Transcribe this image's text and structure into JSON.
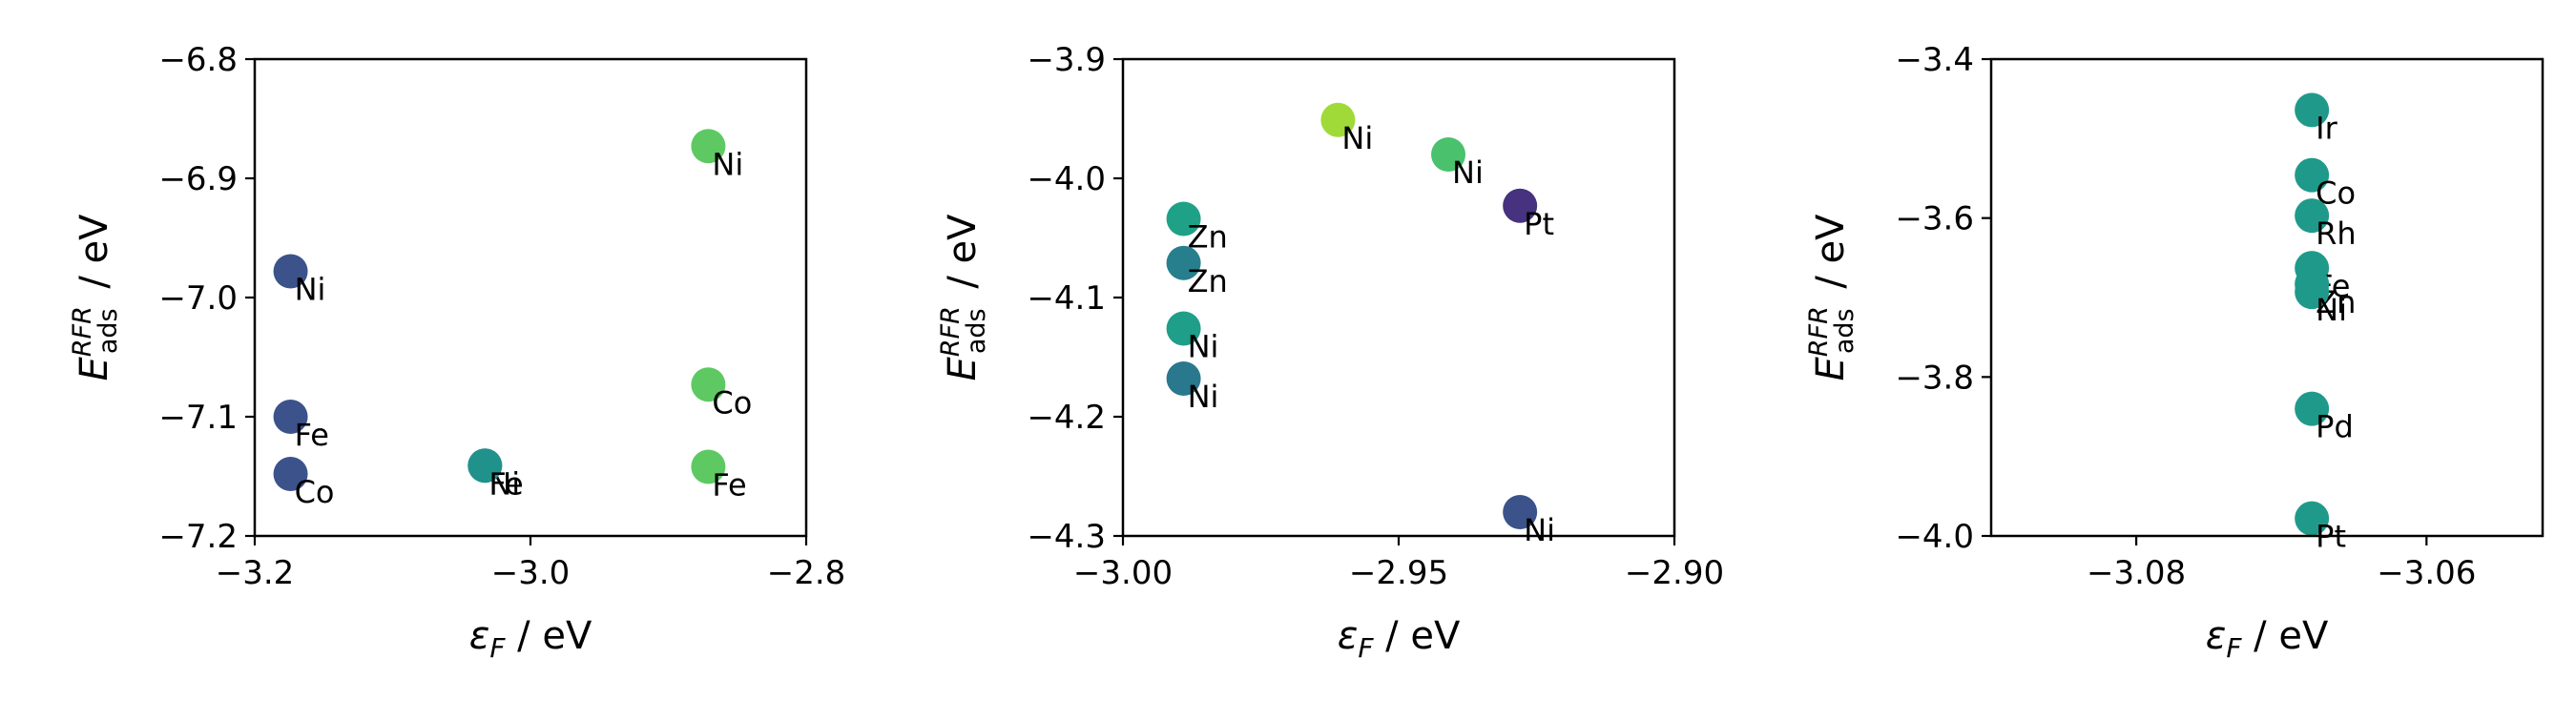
{
  "figure": {
    "xlabel": "ε_F / eV",
    "ylabel": "E_ads^RFR / eV"
  },
  "chart_data": [
    {
      "type": "scatter",
      "xlim": [
        -3.2,
        -2.8
      ],
      "ylim": [
        -7.2,
        -6.8
      ],
      "xticks": [
        -3.2,
        -3.0,
        -2.8
      ],
      "yticks": [
        -7.2,
        -7.1,
        -7.0,
        -6.9,
        -6.8
      ],
      "xticklabels": [
        "−3.2",
        "−3.0",
        "−2.8"
      ],
      "yticklabels": [
        "−7.2",
        "−7.1",
        "−7.0",
        "−6.9",
        "−6.8"
      ],
      "xlabel": "ε_F / eV",
      "ylabel": "E_ads^RFR / eV",
      "points": [
        {
          "label": "Ni",
          "x": -2.871,
          "y": -6.873,
          "color": "#5ec962"
        },
        {
          "label": "Ni",
          "x": -3.174,
          "y": -6.978,
          "color": "#3b528b"
        },
        {
          "label": "Co",
          "x": -2.871,
          "y": -7.073,
          "color": "#5ec962"
        },
        {
          "label": "Fe",
          "x": -3.174,
          "y": -7.1,
          "color": "#3b528b"
        },
        {
          "label": "Ni",
          "x": -3.033,
          "y": -7.141,
          "color": "#21918c"
        },
        {
          "label": "Fe",
          "x": -3.033,
          "y": -7.141,
          "color": "#21918c"
        },
        {
          "label": "Fe",
          "x": -2.871,
          "y": -7.142,
          "color": "#5ec962"
        },
        {
          "label": "Co",
          "x": -3.174,
          "y": -7.148,
          "color": "#3b528b"
        }
      ]
    },
    {
      "type": "scatter",
      "xlim": [
        -3.0,
        -2.9
      ],
      "ylim": [
        -4.3,
        -3.9
      ],
      "xticks": [
        -3.0,
        -2.95,
        -2.9
      ],
      "yticks": [
        -4.3,
        -4.2,
        -4.1,
        -4.0,
        -3.9
      ],
      "xticklabels": [
        "−3.00",
        "−2.95",
        "−2.90"
      ],
      "yticklabels": [
        "−4.3",
        "−4.2",
        "−4.1",
        "−4.0",
        "−3.9"
      ],
      "xlabel": "ε_F / eV",
      "ylabel": "E_ads^RFR / eV",
      "points": [
        {
          "label": "Ni",
          "x": -2.961,
          "y": -3.951,
          "color": "#a0da39"
        },
        {
          "label": "Ni",
          "x": -2.941,
          "y": -3.98,
          "color": "#4ac16d"
        },
        {
          "label": "Pt",
          "x": -2.928,
          "y": -4.023,
          "color": "#46327e"
        },
        {
          "label": "Zn",
          "x": -2.989,
          "y": -4.034,
          "color": "#1fa187"
        },
        {
          "label": "Zn",
          "x": -2.989,
          "y": -4.071,
          "color": "#277f8e"
        },
        {
          "label": "Ni",
          "x": -2.989,
          "y": -4.126,
          "color": "#1f9e89"
        },
        {
          "label": "Ni",
          "x": -2.989,
          "y": -4.168,
          "color": "#2a788e"
        },
        {
          "label": "Ni",
          "x": -2.928,
          "y": -4.28,
          "color": "#3b528b"
        }
      ]
    },
    {
      "type": "scatter",
      "xlim": [
        -3.09,
        -3.052
      ],
      "ylim": [
        -4.0,
        -3.4
      ],
      "xticks": [
        -3.08,
        -3.06
      ],
      "yticks": [
        -4.0,
        -3.8,
        -3.6,
        -3.4
      ],
      "xticklabels": [
        "−3.08",
        "−3.06"
      ],
      "yticklabels": [
        "−4.0",
        "−3.8",
        "−3.6",
        "−3.4"
      ],
      "xlabel": "ε_F / eV",
      "ylabel": "E_ads^RFR / eV",
      "points": [
        {
          "label": "Ir",
          "x": -3.0679,
          "y": -3.464,
          "color": "#1f9a8a"
        },
        {
          "label": "Co",
          "x": -3.0679,
          "y": -3.546,
          "color": "#1f9a8a"
        },
        {
          "label": "Rh",
          "x": -3.0679,
          "y": -3.597,
          "color": "#1f9a8a"
        },
        {
          "label": "Fe",
          "x": -3.0679,
          "y": -3.663,
          "color": "#1f9a8a"
        },
        {
          "label": "Zn",
          "x": -3.0679,
          "y": -3.683,
          "color": "#1f9a8a"
        },
        {
          "label": "Ni",
          "x": -3.0679,
          "y": -3.693,
          "color": "#1f9a8a"
        },
        {
          "label": "Pd",
          "x": -3.0679,
          "y": -3.84,
          "color": "#1f9a8a"
        },
        {
          "label": "Pt",
          "x": -3.0679,
          "y": -3.978,
          "color": "#1f9a8a"
        }
      ]
    }
  ]
}
